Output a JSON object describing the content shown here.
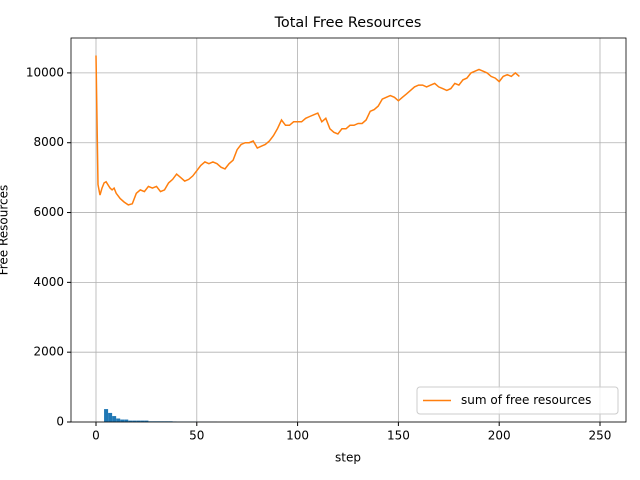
{
  "chart_data": {
    "type": "line",
    "title": "Total Free Resources",
    "xlabel": "step",
    "ylabel": "Free Resources",
    "xlim": [
      -12.4,
      262.9
    ],
    "xticks": [
      0,
      50,
      100,
      150,
      200,
      250
    ],
    "ylim": [
      0,
      11000
    ],
    "yticks": [
      0,
      2000,
      4000,
      6000,
      8000,
      10000
    ],
    "grid": true,
    "legend": "lower right",
    "bars": {
      "color": "#1f77b4",
      "width": 2,
      "x": [
        5,
        7,
        9,
        11,
        13,
        15,
        17,
        19,
        21,
        23,
        25,
        27,
        29,
        31,
        33,
        35,
        37,
        39,
        41,
        43,
        45,
        47,
        49,
        51,
        53,
        55,
        57,
        59
      ],
      "values": [
        370,
        260,
        170,
        100,
        70,
        70,
        40,
        40,
        40,
        40,
        40,
        20,
        20,
        20,
        20,
        20,
        20,
        15,
        10,
        10,
        10,
        10,
        10,
        5,
        5,
        5,
        5,
        5
      ]
    },
    "series": [
      {
        "name": "sum of free resources",
        "color": "#ff7f0e",
        "x": [
          0,
          1,
          2,
          3,
          4,
          5,
          7,
          8,
          9,
          10,
          12,
          14,
          16,
          18,
          20,
          22,
          24,
          26,
          28,
          30,
          32,
          34,
          36,
          38,
          40,
          42,
          44,
          46,
          48,
          50,
          52,
          54,
          56,
          58,
          60,
          62,
          64,
          66,
          68,
          70,
          72,
          74,
          76,
          78,
          80,
          82,
          84,
          86,
          88,
          90,
          92,
          94,
          96,
          98,
          100,
          102,
          104,
          106,
          108,
          110,
          112,
          114,
          116,
          118,
          120,
          122,
          124,
          126,
          128,
          130,
          132,
          134,
          136,
          138,
          140,
          142,
          144,
          146,
          148,
          150,
          152,
          154,
          156,
          158,
          160,
          162,
          164,
          166,
          168,
          170,
          172,
          174,
          176,
          178,
          180,
          182,
          184,
          186,
          188,
          190,
          192,
          194,
          196,
          198,
          200,
          202,
          204,
          206,
          208,
          210
        ],
        "values": [
          10500,
          6800,
          6500,
          6700,
          6850,
          6880,
          6700,
          6650,
          6700,
          6550,
          6400,
          6300,
          6220,
          6250,
          6550,
          6650,
          6600,
          6750,
          6700,
          6750,
          6600,
          6650,
          6850,
          6950,
          7100,
          7000,
          6900,
          6950,
          7050,
          7200,
          7350,
          7450,
          7400,
          7450,
          7400,
          7300,
          7250,
          7400,
          7500,
          7800,
          7950,
          8000,
          8000,
          8050,
          7850,
          7900,
          7950,
          8050,
          8200,
          8400,
          8650,
          8500,
          8500,
          8600,
          8600,
          8600,
          8700,
          8750,
          8800,
          8850,
          8600,
          8700,
          8400,
          8300,
          8250,
          8400,
          8400,
          8500,
          8500,
          8550,
          8550,
          8650,
          8900,
          8950,
          9050,
          9250,
          9300,
          9350,
          9300,
          9200,
          9300,
          9400,
          9500,
          9600,
          9650,
          9650,
          9600,
          9650,
          9700,
          9600,
          9550,
          9500,
          9550,
          9700,
          9650,
          9800,
          9850,
          10000,
          10050,
          10100,
          10050,
          10000,
          9900,
          9850,
          9750,
          9900,
          9950,
          9900,
          10000,
          9900
        ]
      }
    ]
  }
}
